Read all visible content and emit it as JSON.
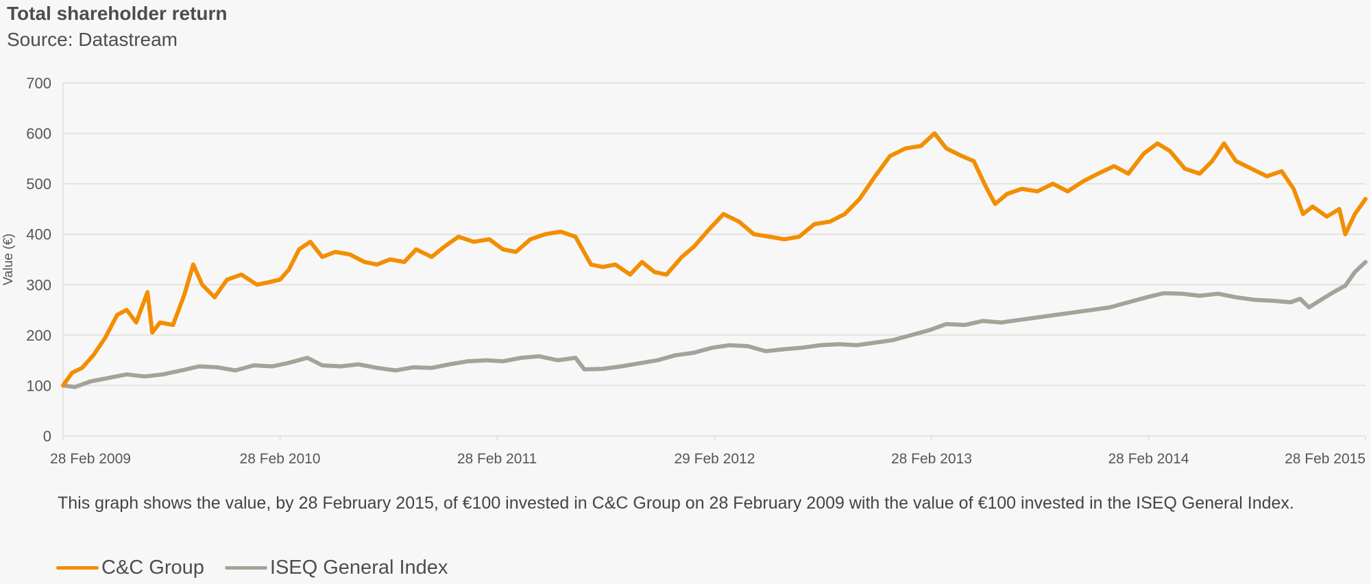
{
  "title": "Total shareholder return",
  "subtitle": "Source: Datastream",
  "caption": "This graph shows the value, by 28 February 2015, of €100 invested in C&C Group on 28 February 2009 with the value of  €100 invested in the ISEQ General Index.",
  "colors": {
    "cc": "#f28e00",
    "iseq": "#a3a39a",
    "grid": "#e3e3de"
  },
  "legend": [
    {
      "name": "C&C Group",
      "color": "#f28e00"
    },
    {
      "name": "ISEQ General Index",
      "color": "#a3a39a"
    }
  ],
  "chart_data": {
    "type": "line",
    "title": "Total shareholder return",
    "subtitle": "Source: Datastream",
    "xlabel": "",
    "ylabel": "Value (€)",
    "ylim": [
      0,
      700
    ],
    "yticks": [
      0,
      100,
      200,
      300,
      400,
      500,
      600,
      700
    ],
    "xlim": [
      "2009-02-28",
      "2015-02-28"
    ],
    "xticks": [
      {
        "date": "2009-02-28",
        "label": "28 Feb 2009"
      },
      {
        "date": "2010-02-28",
        "label": "28 Feb 2010"
      },
      {
        "date": "2011-02-28",
        "label": "28 Feb 2011"
      },
      {
        "date": "2012-02-29",
        "label": "29 Feb 2012"
      },
      {
        "date": "2013-02-28",
        "label": "28 Feb 2013"
      },
      {
        "date": "2014-02-28",
        "label": "28 Feb 2014"
      },
      {
        "date": "2015-02-28",
        "label": "28 Feb 2015"
      }
    ],
    "grid": true,
    "legend_position": "bottom-left",
    "series": [
      {
        "name": "C&C Group",
        "color": "#f28e00",
        "points": [
          [
            "2009-02-28",
            100
          ],
          [
            "2009-03-15",
            125
          ],
          [
            "2009-04-01",
            135
          ],
          [
            "2009-04-20",
            160
          ],
          [
            "2009-05-10",
            195
          ],
          [
            "2009-05-30",
            240
          ],
          [
            "2009-06-15",
            250
          ],
          [
            "2009-07-01",
            225
          ],
          [
            "2009-07-20",
            285
          ],
          [
            "2009-07-28",
            205
          ],
          [
            "2009-08-10",
            225
          ],
          [
            "2009-09-01",
            220
          ],
          [
            "2009-09-20",
            280
          ],
          [
            "2009-10-05",
            340
          ],
          [
            "2009-10-20",
            300
          ],
          [
            "2009-11-10",
            275
          ],
          [
            "2009-12-01",
            310
          ],
          [
            "2009-12-25",
            320
          ],
          [
            "2010-01-20",
            300
          ],
          [
            "2010-02-10",
            305
          ],
          [
            "2010-02-28",
            310
          ],
          [
            "2010-03-15",
            330
          ],
          [
            "2010-04-01",
            370
          ],
          [
            "2010-04-20",
            385
          ],
          [
            "2010-05-10",
            355
          ],
          [
            "2010-06-01",
            365
          ],
          [
            "2010-06-25",
            360
          ],
          [
            "2010-07-20",
            345
          ],
          [
            "2010-08-10",
            340
          ],
          [
            "2010-09-01",
            350
          ],
          [
            "2010-09-25",
            345
          ],
          [
            "2010-10-15",
            370
          ],
          [
            "2010-11-10",
            355
          ],
          [
            "2010-12-01",
            375
          ],
          [
            "2010-12-25",
            395
          ],
          [
            "2011-01-20",
            385
          ],
          [
            "2011-02-15",
            390
          ],
          [
            "2011-03-10",
            370
          ],
          [
            "2011-04-01",
            365
          ],
          [
            "2011-04-25",
            390
          ],
          [
            "2011-05-20",
            400
          ],
          [
            "2011-06-15",
            405
          ],
          [
            "2011-07-10",
            395
          ],
          [
            "2011-08-05",
            340
          ],
          [
            "2011-08-25",
            335
          ],
          [
            "2011-09-15",
            340
          ],
          [
            "2011-10-10",
            320
          ],
          [
            "2011-10-30",
            345
          ],
          [
            "2011-11-20",
            325
          ],
          [
            "2011-12-10",
            320
          ],
          [
            "2012-01-05",
            355
          ],
          [
            "2012-01-25",
            375
          ],
          [
            "2012-02-20",
            410
          ],
          [
            "2012-03-15",
            440
          ],
          [
            "2012-04-10",
            425
          ],
          [
            "2012-05-05",
            400
          ],
          [
            "2012-06-01",
            395
          ],
          [
            "2012-06-25",
            390
          ],
          [
            "2012-07-20",
            395
          ],
          [
            "2012-08-15",
            420
          ],
          [
            "2012-09-10",
            425
          ],
          [
            "2012-10-05",
            440
          ],
          [
            "2012-10-30",
            470
          ],
          [
            "2012-11-25",
            515
          ],
          [
            "2012-12-20",
            555
          ],
          [
            "2013-01-15",
            570
          ],
          [
            "2013-02-10",
            575
          ],
          [
            "2013-03-05",
            600
          ],
          [
            "2013-03-25",
            570
          ],
          [
            "2013-04-20",
            555
          ],
          [
            "2013-05-10",
            545
          ],
          [
            "2013-05-30",
            495
          ],
          [
            "2013-06-15",
            460
          ],
          [
            "2013-07-05",
            480
          ],
          [
            "2013-07-30",
            490
          ],
          [
            "2013-08-25",
            485
          ],
          [
            "2013-09-20",
            500
          ],
          [
            "2013-10-15",
            485
          ],
          [
            "2013-11-10",
            505
          ],
          [
            "2013-12-05",
            520
          ],
          [
            "2014-01-01",
            535
          ],
          [
            "2014-01-25",
            520
          ],
          [
            "2014-02-20",
            560
          ],
          [
            "2014-03-15",
            580
          ],
          [
            "2014-04-05",
            565
          ],
          [
            "2014-04-30",
            530
          ],
          [
            "2014-05-25",
            520
          ],
          [
            "2014-06-15",
            545
          ],
          [
            "2014-07-05",
            580
          ],
          [
            "2014-07-25",
            545
          ],
          [
            "2014-08-20",
            530
          ],
          [
            "2014-09-15",
            515
          ],
          [
            "2014-10-10",
            525
          ],
          [
            "2014-10-30",
            490
          ],
          [
            "2014-11-15",
            440
          ],
          [
            "2014-12-01",
            455
          ],
          [
            "2014-12-25",
            435
          ],
          [
            "2015-01-15",
            450
          ],
          [
            "2015-01-25",
            400
          ],
          [
            "2015-02-10",
            440
          ],
          [
            "2015-02-28",
            470
          ]
        ]
      },
      {
        "name": "ISEQ General Index",
        "color": "#a3a39a",
        "points": [
          [
            "2009-02-28",
            100
          ],
          [
            "2009-03-20",
            97
          ],
          [
            "2009-04-15",
            108
          ],
          [
            "2009-05-15",
            115
          ],
          [
            "2009-06-15",
            122
          ],
          [
            "2009-07-15",
            118
          ],
          [
            "2009-08-15",
            122
          ],
          [
            "2009-09-15",
            130
          ],
          [
            "2009-10-15",
            138
          ],
          [
            "2009-11-15",
            136
          ],
          [
            "2009-12-15",
            130
          ],
          [
            "2010-01-15",
            140
          ],
          [
            "2010-02-15",
            138
          ],
          [
            "2010-03-15",
            145
          ],
          [
            "2010-04-15",
            155
          ],
          [
            "2010-05-10",
            140
          ],
          [
            "2010-06-10",
            138
          ],
          [
            "2010-07-10",
            142
          ],
          [
            "2010-08-10",
            135
          ],
          [
            "2010-09-10",
            130
          ],
          [
            "2010-10-10",
            136
          ],
          [
            "2010-11-10",
            135
          ],
          [
            "2010-12-10",
            142
          ],
          [
            "2011-01-10",
            148
          ],
          [
            "2011-02-10",
            150
          ],
          [
            "2011-03-10",
            148
          ],
          [
            "2011-04-10",
            155
          ],
          [
            "2011-05-10",
            158
          ],
          [
            "2011-06-10",
            150
          ],
          [
            "2011-07-10",
            155
          ],
          [
            "2011-07-25",
            132
          ],
          [
            "2011-08-25",
            133
          ],
          [
            "2011-09-25",
            138
          ],
          [
            "2011-10-25",
            144
          ],
          [
            "2011-11-25",
            150
          ],
          [
            "2011-12-25",
            160
          ],
          [
            "2012-01-25",
            165
          ],
          [
            "2012-02-25",
            175
          ],
          [
            "2012-03-25",
            180
          ],
          [
            "2012-04-25",
            178
          ],
          [
            "2012-05-25",
            168
          ],
          [
            "2012-06-25",
            172
          ],
          [
            "2012-07-25",
            175
          ],
          [
            "2012-08-25",
            180
          ],
          [
            "2012-09-25",
            182
          ],
          [
            "2012-10-25",
            180
          ],
          [
            "2012-11-25",
            185
          ],
          [
            "2012-12-25",
            190
          ],
          [
            "2013-01-25",
            200
          ],
          [
            "2013-02-25",
            210
          ],
          [
            "2013-03-25",
            222
          ],
          [
            "2013-04-25",
            220
          ],
          [
            "2013-05-25",
            228
          ],
          [
            "2013-06-25",
            225
          ],
          [
            "2013-07-25",
            230
          ],
          [
            "2013-08-25",
            235
          ],
          [
            "2013-09-25",
            240
          ],
          [
            "2013-10-25",
            245
          ],
          [
            "2013-11-25",
            250
          ],
          [
            "2013-12-25",
            255
          ],
          [
            "2014-01-25",
            265
          ],
          [
            "2014-02-25",
            275
          ],
          [
            "2014-03-25",
            283
          ],
          [
            "2014-04-25",
            282
          ],
          [
            "2014-05-25",
            278
          ],
          [
            "2014-06-25",
            282
          ],
          [
            "2014-07-25",
            275
          ],
          [
            "2014-08-25",
            270
          ],
          [
            "2014-09-25",
            268
          ],
          [
            "2014-10-25",
            265
          ],
          [
            "2014-11-10",
            272
          ],
          [
            "2014-11-25",
            255
          ],
          [
            "2014-12-15",
            270
          ],
          [
            "2015-01-05",
            285
          ],
          [
            "2015-01-25",
            298
          ],
          [
            "2015-02-10",
            325
          ],
          [
            "2015-02-28",
            345
          ]
        ]
      }
    ]
  }
}
